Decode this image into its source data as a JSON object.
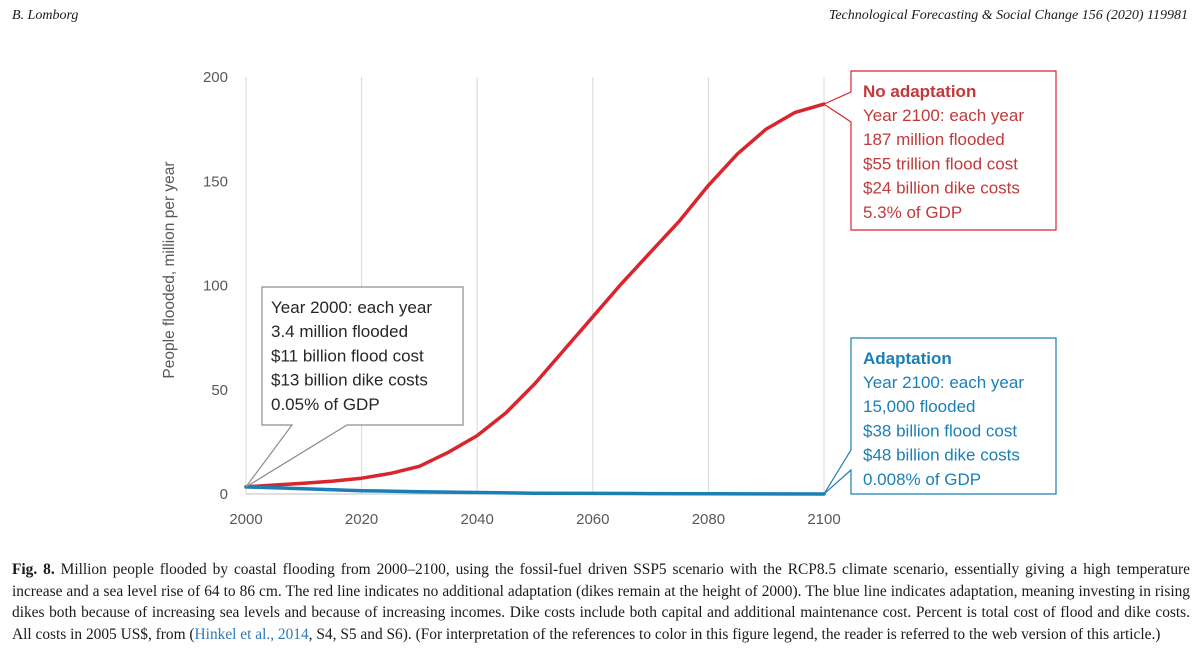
{
  "header": {
    "left": "B. Lomborg",
    "right": "Technological Forecasting & Social Change 156 (2020) 119981"
  },
  "chart_data": {
    "type": "line",
    "title": "",
    "xlabel": "",
    "ylabel": "People flooded, million per year",
    "xlim": [
      2000,
      2100
    ],
    "ylim": [
      0,
      200
    ],
    "xticks": [
      2000,
      2020,
      2040,
      2060,
      2080,
      2100
    ],
    "yticks": [
      0,
      50,
      100,
      150,
      200
    ],
    "grid": "vertical",
    "series": [
      {
        "name": "No adaptation",
        "color": "#d8262f",
        "x": [
          2000,
          2005,
          2010,
          2015,
          2020,
          2025,
          2030,
          2035,
          2040,
          2045,
          2050,
          2055,
          2060,
          2065,
          2070,
          2075,
          2080,
          2085,
          2090,
          2095,
          2100
        ],
        "y": [
          3.4,
          4.3,
          5.2,
          6.2,
          7.6,
          9.9,
          13.3,
          20,
          28,
          39,
          53,
          69,
          85,
          101,
          116,
          131,
          148,
          163,
          175,
          183,
          187
        ]
      },
      {
        "name": "Adaptation",
        "color": "#1a7fb5",
        "x": [
          2000,
          2010,
          2020,
          2030,
          2040,
          2050,
          2060,
          2070,
          2080,
          2090,
          2100
        ],
        "y": [
          3.4,
          2.5,
          1.6,
          1.1,
          0.7,
          0.4,
          0.3,
          0.2,
          0.1,
          0.05,
          0.015
        ]
      }
    ],
    "annotations": [
      {
        "id": "start",
        "color": "#333333",
        "lines": [
          "Year 2000: each year",
          "3.4 million flooded",
          "$11 billion flood cost",
          "$13 billion dike costs",
          "0.05% of GDP"
        ]
      },
      {
        "id": "no-adaptation",
        "color": "#c0393b",
        "title": "No adaptation",
        "lines": [
          "Year 2100: each year",
          "187 million flooded",
          "$55 trillion flood cost",
          "$24 billion dike costs",
          "5.3% of GDP"
        ]
      },
      {
        "id": "adaptation",
        "color": "#1a7fb5",
        "title": "Adaptation",
        "lines": [
          "Year 2100: each year",
          "15,000 flooded",
          "$38 billion flood cost",
          "$48 billion dike costs",
          "0.008% of GDP"
        ]
      }
    ]
  },
  "caption": {
    "label": "Fig. 8.",
    "text": "Million people flooded by coastal flooding from 2000–2100, using the fossil-fuel driven SSP5 scenario with the RCP8.5 climate scenario, essentially giving a high temperature increase and a sea level rise of 64 to 86 cm. The red line indicates no additional adaptation (dikes remain at the height of 2000). The blue line indicates adaptation, meaning investing in rising dikes both because of increasing sea levels and because of increasing incomes. Dike costs include both capital and additional maintenance cost. Percent is total cost of flood and dike costs. All costs in 2005 US$, from (",
    "link": "Hinkel et al., 2014",
    "text_after": ", S4, S5 and S6). (For interpretation of the references to color in this figure legend, the reader is referred to the web version of this article.)"
  }
}
